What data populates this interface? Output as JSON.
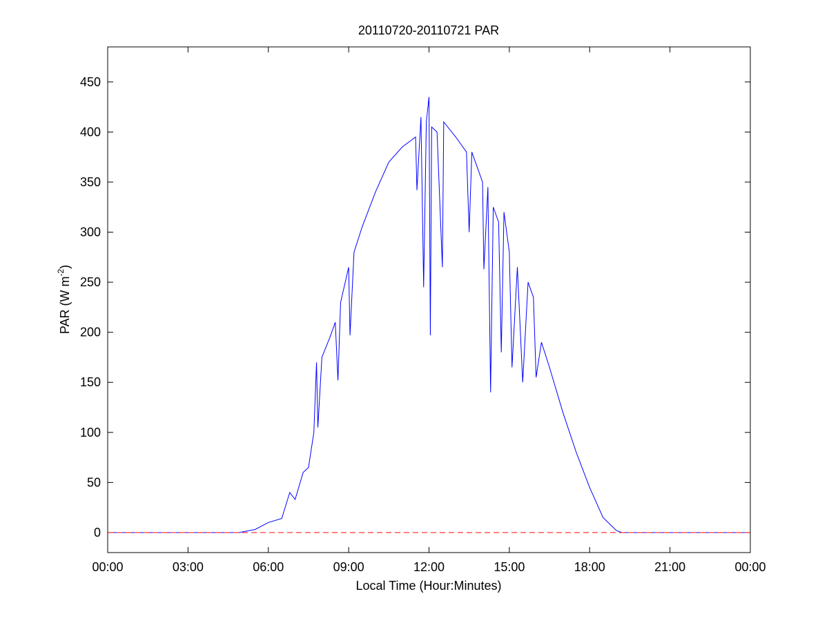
{
  "chart_data": {
    "type": "line",
    "title": "20110720-20110721 PAR",
    "xlabel": "Local Time (Hour:Minutes)",
    "ylabel": {
      "text": "PAR (W m",
      "superscript": "-2",
      "suffix": ")"
    },
    "xlim": [
      0,
      24
    ],
    "xticks": [
      {
        "value": 0,
        "label": "00:00"
      },
      {
        "value": 3,
        "label": "03:00"
      },
      {
        "value": 6,
        "label": "06:00"
      },
      {
        "value": 9,
        "label": "09:00"
      },
      {
        "value": 12,
        "label": "12:00"
      },
      {
        "value": 15,
        "label": "15:00"
      },
      {
        "value": 18,
        "label": "18:00"
      },
      {
        "value": 21,
        "label": "21:00"
      },
      {
        "value": 24,
        "label": "00:00"
      }
    ],
    "ylim": [
      -20,
      485
    ],
    "yticks": [
      0,
      50,
      100,
      150,
      200,
      250,
      300,
      350,
      400,
      450
    ],
    "grid": false,
    "x": [
      0,
      3,
      4.9,
      5.5,
      6,
      6.5,
      6.8,
      7.0,
      7.3,
      7.5,
      7.7,
      7.8,
      7.85,
      8.0,
      8.3,
      8.5,
      8.6,
      8.7,
      9.0,
      9.05,
      9.2,
      9.5,
      10,
      10.5,
      11,
      11.5,
      11.55,
      11.7,
      11.8,
      11.9,
      12.0,
      12.05,
      12.1,
      12.3,
      12.5,
      12.55,
      13,
      13.4,
      13.5,
      13.6,
      14,
      14.05,
      14.2,
      14.3,
      14.4,
      14.6,
      14.7,
      14.8,
      15.0,
      15.1,
      15.3,
      15.5,
      15.7,
      15.9,
      16.0,
      16.2,
      16.5,
      17,
      17.5,
      18,
      18.5,
      19.0,
      19.2,
      24
    ],
    "series": [
      {
        "name": "PAR",
        "color": "#0000ff",
        "values": [
          0,
          0,
          0,
          3,
          10,
          14,
          40,
          33,
          60,
          65,
          100,
          170,
          105,
          175,
          195,
          210,
          152,
          230,
          265,
          197,
          280,
          305,
          340,
          370,
          385,
          395,
          342,
          415,
          245,
          410,
          435,
          197,
          405,
          400,
          265,
          410,
          395,
          380,
          300,
          380,
          350,
          263,
          345,
          140,
          325,
          310,
          180,
          320,
          280,
          165,
          265,
          150,
          250,
          235,
          155,
          190,
          165,
          120,
          80,
          45,
          15,
          2,
          0,
          0
        ]
      }
    ],
    "hline": {
      "value": 0,
      "color": "#ff0000"
    }
  }
}
